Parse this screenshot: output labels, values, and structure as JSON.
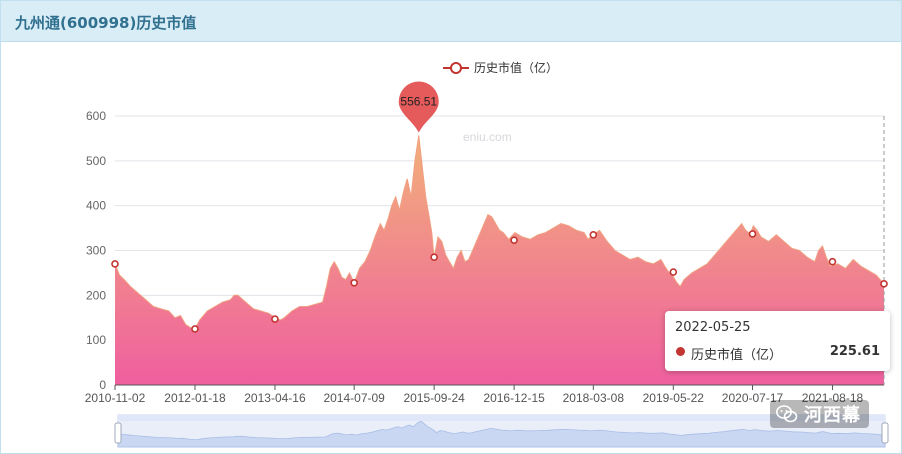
{
  "header": {
    "title": "九州通(600998)历史市值"
  },
  "chart_data": {
    "type": "area",
    "title": "九州通(600998)历史市值",
    "xlabel": "",
    "ylabel": "",
    "ylim": [
      0,
      600
    ],
    "y_ticks": [
      0,
      100,
      200,
      300,
      400,
      500,
      600
    ],
    "x_tick_labels": [
      "2010-11-02",
      "2012-01-18",
      "2013-04-16",
      "2014-07-09",
      "2015-09-24",
      "2016-12-15",
      "2018-03-08",
      "2019-05-22",
      "2020-07-17",
      "2021-08-18"
    ],
    "x_tick_fracs": [
      0.0,
      0.104,
      0.208,
      0.311,
      0.415,
      0.519,
      0.622,
      0.726,
      0.829,
      0.933
    ],
    "legend": {
      "label": "历史市值（亿）",
      "position": "top-center"
    },
    "watermark_text": "eniu.com",
    "max_point": {
      "label": "556.51",
      "value": 556.51,
      "xfrac": 0.395
    },
    "series": [
      {
        "name": "历史市值（亿）",
        "points": [
          [
            0.0,
            270
          ],
          [
            0.006,
            245
          ],
          [
            0.012,
            235
          ],
          [
            0.02,
            220
          ],
          [
            0.03,
            205
          ],
          [
            0.04,
            190
          ],
          [
            0.05,
            175
          ],
          [
            0.06,
            170
          ],
          [
            0.07,
            165
          ],
          [
            0.078,
            150
          ],
          [
            0.085,
            155
          ],
          [
            0.092,
            135
          ],
          [
            0.098,
            128
          ],
          [
            0.104,
            125
          ],
          [
            0.11,
            145
          ],
          [
            0.12,
            165
          ],
          [
            0.13,
            175
          ],
          [
            0.14,
            185
          ],
          [
            0.15,
            190
          ],
          [
            0.155,
            200
          ],
          [
            0.16,
            200
          ],
          [
            0.17,
            185
          ],
          [
            0.18,
            170
          ],
          [
            0.19,
            165
          ],
          [
            0.2,
            160
          ],
          [
            0.208,
            150
          ],
          [
            0.215,
            145
          ],
          [
            0.22,
            150
          ],
          [
            0.23,
            165
          ],
          [
            0.24,
            175
          ],
          [
            0.25,
            175
          ],
          [
            0.26,
            180
          ],
          [
            0.27,
            185
          ],
          [
            0.275,
            220
          ],
          [
            0.28,
            260
          ],
          [
            0.285,
            275
          ],
          [
            0.29,
            260
          ],
          [
            0.295,
            240
          ],
          [
            0.3,
            235
          ],
          [
            0.305,
            250
          ],
          [
            0.311,
            228
          ],
          [
            0.318,
            260
          ],
          [
            0.325,
            275
          ],
          [
            0.332,
            300
          ],
          [
            0.338,
            330
          ],
          [
            0.345,
            360
          ],
          [
            0.35,
            345
          ],
          [
            0.355,
            370
          ],
          [
            0.36,
            400
          ],
          [
            0.365,
            420
          ],
          [
            0.37,
            390
          ],
          [
            0.375,
            430
          ],
          [
            0.38,
            460
          ],
          [
            0.385,
            420
          ],
          [
            0.39,
            500
          ],
          [
            0.395,
            556.51
          ],
          [
            0.4,
            480
          ],
          [
            0.404,
            420
          ],
          [
            0.408,
            380
          ],
          [
            0.412,
            340
          ],
          [
            0.415,
            285
          ],
          [
            0.42,
            330
          ],
          [
            0.425,
            320
          ],
          [
            0.43,
            290
          ],
          [
            0.435,
            275
          ],
          [
            0.44,
            260
          ],
          [
            0.445,
            285
          ],
          [
            0.45,
            300
          ],
          [
            0.455,
            275
          ],
          [
            0.46,
            280
          ],
          [
            0.465,
            300
          ],
          [
            0.47,
            320
          ],
          [
            0.475,
            340
          ],
          [
            0.48,
            360
          ],
          [
            0.485,
            380
          ],
          [
            0.49,
            375
          ],
          [
            0.495,
            360
          ],
          [
            0.5,
            345
          ],
          [
            0.505,
            340
          ],
          [
            0.512,
            325
          ],
          [
            0.52,
            340
          ],
          [
            0.53,
            330
          ],
          [
            0.54,
            325
          ],
          [
            0.55,
            335
          ],
          [
            0.56,
            340
          ],
          [
            0.57,
            350
          ],
          [
            0.58,
            360
          ],
          [
            0.59,
            355
          ],
          [
            0.6,
            345
          ],
          [
            0.61,
            340
          ],
          [
            0.615,
            325
          ],
          [
            0.622,
            335
          ],
          [
            0.63,
            345
          ],
          [
            0.64,
            320
          ],
          [
            0.65,
            300
          ],
          [
            0.66,
            290
          ],
          [
            0.67,
            280
          ],
          [
            0.68,
            285
          ],
          [
            0.69,
            275
          ],
          [
            0.7,
            270
          ],
          [
            0.71,
            280
          ],
          [
            0.715,
            265
          ],
          [
            0.72,
            252
          ],
          [
            0.725,
            245
          ],
          [
            0.73,
            230
          ],
          [
            0.735,
            220
          ],
          [
            0.74,
            235
          ],
          [
            0.75,
            250
          ],
          [
            0.76,
            260
          ],
          [
            0.77,
            270
          ],
          [
            0.78,
            290
          ],
          [
            0.79,
            310
          ],
          [
            0.8,
            330
          ],
          [
            0.81,
            350
          ],
          [
            0.815,
            360
          ],
          [
            0.82,
            345
          ],
          [
            0.826,
            337
          ],
          [
            0.83,
            355
          ],
          [
            0.835,
            345
          ],
          [
            0.84,
            330
          ],
          [
            0.85,
            320
          ],
          [
            0.86,
            335
          ],
          [
            0.87,
            320
          ],
          [
            0.88,
            305
          ],
          [
            0.89,
            300
          ],
          [
            0.9,
            285
          ],
          [
            0.905,
            280
          ],
          [
            0.91,
            275
          ],
          [
            0.915,
            300
          ],
          [
            0.92,
            310
          ],
          [
            0.925,
            285
          ],
          [
            0.93,
            265
          ],
          [
            0.94,
            270
          ],
          [
            0.95,
            260
          ],
          [
            0.96,
            280
          ],
          [
            0.97,
            265
          ],
          [
            0.98,
            255
          ],
          [
            0.99,
            245
          ],
          [
            1.0,
            225.61
          ]
        ],
        "markers": [
          [
            0.0,
            270
          ],
          [
            0.104,
            125
          ],
          [
            0.208,
            147
          ],
          [
            0.311,
            228
          ],
          [
            0.415,
            285
          ],
          [
            0.519,
            323
          ],
          [
            0.622,
            335
          ],
          [
            0.726,
            252
          ],
          [
            0.829,
            337
          ],
          [
            0.933,
            275
          ],
          [
            1.0,
            225.61
          ]
        ]
      }
    ]
  },
  "tooltip": {
    "date": "2022-05-25",
    "series_name": "历史市值（亿）",
    "value": "225.61"
  },
  "wechat_watermark": {
    "text": "河西幕"
  },
  "colors": {
    "line_top": "#f2b07a",
    "fill_bottom": "#ef5f9f",
    "marker": "#c23531",
    "accent": "#31708f"
  }
}
